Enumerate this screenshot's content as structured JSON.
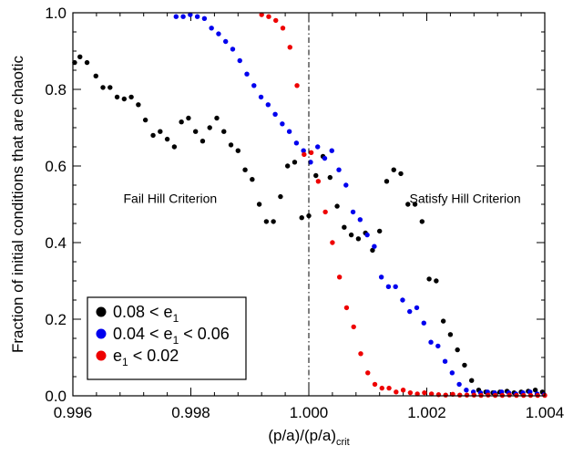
{
  "chart_data": {
    "type": "scatter",
    "xlabel": "(p/a)/(p/a)",
    "xlabel_sub": "crit",
    "ylabel": "Fraction of initial conditions that are chaotic",
    "xlim": [
      0.996,
      1.004
    ],
    "ylim": [
      0.0,
      1.0
    ],
    "xticks": [
      0.996,
      0.998,
      1.0,
      1.002,
      1.004
    ],
    "xtick_labels": [
      "0.996",
      "0.998",
      "1.000",
      "1.002",
      "1.004"
    ],
    "yticks": [
      0.0,
      0.2,
      0.4,
      0.6,
      0.8,
      1.0
    ],
    "ytick_labels": [
      "0.0",
      "0.2",
      "0.4",
      "0.6",
      "0.8",
      "1.0"
    ],
    "grid": false,
    "legend_position": "bottom-left",
    "vline": {
      "x": 1.0,
      "style": "dash-dot"
    },
    "annotations": [
      {
        "text": "Fail Hill Criterion",
        "x": 0.99765,
        "y": 0.515
      },
      {
        "text": "Satisfy Hill Criterion",
        "x": 1.00265,
        "y": 0.515
      }
    ],
    "series": [
      {
        "legend_main": "0.08 < e",
        "legend_sub": "1",
        "legend_tail": "",
        "color": "#000000",
        "x": [
          0.99603,
          0.99612,
          0.99624,
          0.99639,
          0.99651,
          0.99663,
          0.99675,
          0.99687,
          0.99699,
          0.99711,
          0.99723,
          0.99736,
          0.99748,
          0.9976,
          0.99772,
          0.99784,
          0.99796,
          0.99808,
          0.9982,
          0.99832,
          0.99844,
          0.99856,
          0.99868,
          0.9988,
          0.99892,
          0.99904,
          0.99916,
          0.99928,
          0.9994,
          0.99952,
          0.99964,
          0.99976,
          0.99988,
          1.0,
          1.00012,
          1.00024,
          1.00036,
          1.00048,
          1.0006,
          1.00072,
          1.00084,
          1.00096,
          1.00108,
          1.0012,
          1.00132,
          1.00144,
          1.00156,
          1.00168,
          1.0018,
          1.00192,
          1.00204,
          1.00216,
          1.00228,
          1.0024,
          1.00252,
          1.00264,
          1.00276,
          1.00288,
          1.003,
          1.00312,
          1.00324,
          1.00336,
          1.00348,
          1.0036,
          1.00372,
          1.00384,
          1.00396
        ],
        "y": [
          0.87,
          0.885,
          0.87,
          0.835,
          0.805,
          0.805,
          0.78,
          0.775,
          0.78,
          0.76,
          0.72,
          0.68,
          0.69,
          0.67,
          0.65,
          0.715,
          0.725,
          0.69,
          0.665,
          0.7,
          0.725,
          0.69,
          0.655,
          0.64,
          0.59,
          0.565,
          0.5,
          0.455,
          0.455,
          0.52,
          0.6,
          0.61,
          0.465,
          0.47,
          0.575,
          0.625,
          0.57,
          0.495,
          0.44,
          0.42,
          0.41,
          0.425,
          0.38,
          0.43,
          0.56,
          0.59,
          0.58,
          0.5,
          0.5,
          0.455,
          0.305,
          0.3,
          0.195,
          0.16,
          0.12,
          0.08,
          0.04,
          0.015,
          0.01,
          0.008,
          0.01,
          0.012,
          0.008,
          0.01,
          0.012,
          0.015,
          0.01
        ]
      },
      {
        "legend_main": "0.04 < e",
        "legend_sub": "1",
        "legend_tail": " < 0.06",
        "color": "#0000ee",
        "x": [
          0.99775,
          0.99787,
          0.99799,
          0.99811,
          0.99823,
          0.99835,
          0.99847,
          0.99859,
          0.99871,
          0.99883,
          0.99895,
          0.99907,
          0.99919,
          0.99931,
          0.99943,
          0.99955,
          0.99967,
          0.99979,
          0.99991,
          1.00003,
          1.00015,
          1.00027,
          1.00039,
          1.00051,
          1.00063,
          1.00075,
          1.00087,
          1.00099,
          1.00111,
          1.00123,
          1.00135,
          1.00147,
          1.00159,
          1.00171,
          1.00183,
          1.00195,
          1.00207,
          1.00219,
          1.00231,
          1.00243,
          1.00255,
          1.00267,
          1.00279,
          1.00291,
          1.00303,
          1.00315,
          1.00327,
          1.00339,
          1.00351,
          1.00363,
          1.00375,
          1.00387,
          1.00399
        ],
        "y": [
          0.99,
          0.99,
          0.995,
          0.99,
          0.985,
          0.96,
          0.945,
          0.925,
          0.905,
          0.875,
          0.84,
          0.81,
          0.78,
          0.76,
          0.735,
          0.71,
          0.69,
          0.66,
          0.64,
          0.61,
          0.65,
          0.62,
          0.64,
          0.59,
          0.55,
          0.48,
          0.46,
          0.42,
          0.39,
          0.31,
          0.285,
          0.285,
          0.25,
          0.22,
          0.23,
          0.19,
          0.14,
          0.13,
          0.09,
          0.06,
          0.03,
          0.015,
          0.01,
          0.008,
          0.01,
          0.008,
          0.01,
          0.008,
          0.005,
          0.008,
          0.01,
          0.005,
          0.003
        ]
      },
      {
        "legend_main": "e",
        "legend_sub": "1",
        "legend_tail": " < 0.02",
        "color": "#ee0000",
        "x": [
          0.9992,
          0.99932,
          0.99944,
          0.99956,
          0.99968,
          0.9998,
          0.99992,
          1.00004,
          1.00016,
          1.00028,
          1.0004,
          1.00052,
          1.00064,
          1.00076,
          1.00088,
          1.001,
          1.00112,
          1.00124,
          1.00136,
          1.00148,
          1.0016,
          1.00172,
          1.00184,
          1.00196,
          1.00208,
          1.0022,
          1.00232,
          1.00244,
          1.00256,
          1.00268,
          1.0028,
          1.00292,
          1.00304,
          1.00316,
          1.00328,
          1.0034,
          1.00352,
          1.00364,
          1.00376,
          1.00388,
          1.004
        ],
        "y": [
          0.995,
          0.99,
          0.98,
          0.96,
          0.91,
          0.81,
          0.63,
          0.635,
          0.56,
          0.48,
          0.4,
          0.31,
          0.23,
          0.18,
          0.11,
          0.06,
          0.03,
          0.02,
          0.02,
          0.01,
          0.015,
          0.008,
          0.005,
          0.008,
          0.005,
          0.003,
          0.002,
          0.004,
          0.002,
          0.002,
          0.002,
          0.001,
          0.002,
          0.001,
          0.001,
          0.002,
          0.001,
          0.001,
          0.001,
          0.001,
          0.001
        ]
      }
    ]
  }
}
